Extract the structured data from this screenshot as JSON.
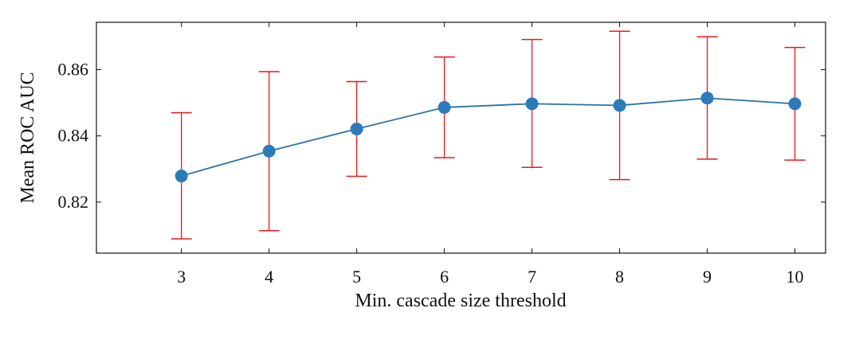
{
  "chart_data": {
    "type": "line",
    "title": "",
    "xlabel": "Min. cascade size threshold",
    "ylabel": "Mean ROC AUC",
    "x": [
      3,
      4,
      5,
      6,
      7,
      8,
      9,
      10
    ],
    "xlim": [
      2.03,
      10.35
    ],
    "ylim": [
      0.8046,
      0.8743
    ],
    "x_ticks": [
      "3",
      "4",
      "5",
      "6",
      "7",
      "8",
      "9",
      "10"
    ],
    "y_ticks": [
      0.82,
      0.84,
      0.86
    ],
    "y_tick_labels": [
      "0.82",
      "0.84",
      "0.86"
    ],
    "grid": false,
    "series": [
      {
        "values": [
          0.8279,
          0.8354,
          0.8421,
          0.8486,
          0.8497,
          0.8492,
          0.8514,
          0.8497
        ],
        "error_low": [
          0.8089,
          0.8114,
          0.8278,
          0.8334,
          0.8305,
          0.8268,
          0.833,
          0.8327
        ],
        "error_high": [
          0.847,
          0.8594,
          0.8564,
          0.8638,
          0.8691,
          0.8716,
          0.8699,
          0.8667
        ],
        "line_color": "#2b73a6",
        "marker_color": "#2b7bb9",
        "error_color": "#e8191c"
      }
    ]
  }
}
